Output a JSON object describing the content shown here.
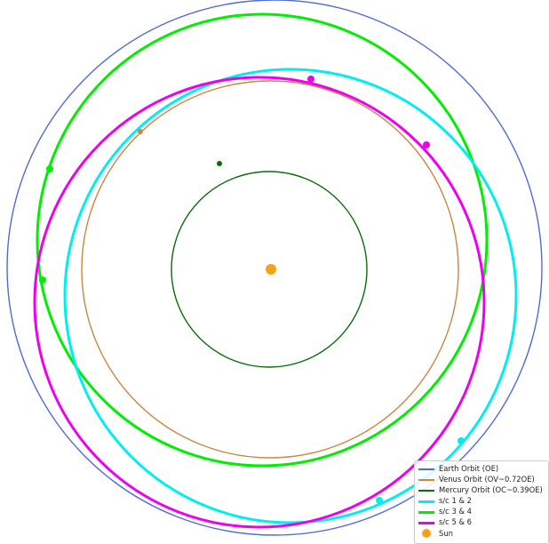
{
  "colors": {
    "earth": "#4f6bd6",
    "venus": "#cd853f",
    "mercury": "#0b6b0b",
    "sc12": "#00eeee",
    "sc34": "#00ee00",
    "sc56": "#ee00ee",
    "sun": "#f5a31a"
  },
  "legend": {
    "earth": "Earth Orbit (OE)",
    "venus": "Venus Orbit (OV~0.72OE)",
    "mercury": "Mercury Orbit (OC~0.39OE)",
    "sc12": "s/c 1 & 2",
    "sc34": "s/c 3 & 4",
    "sc56": "s/c 5 & 6",
    "sun": "Sun"
  }
}
